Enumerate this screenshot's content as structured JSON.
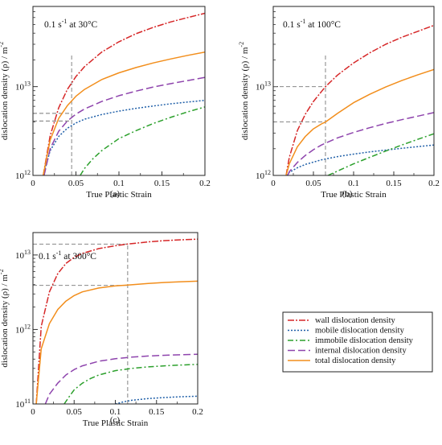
{
  "legend": {
    "items": [
      {
        "label": "wall dislocation density",
        "color": "#d62728",
        "dash": "8,2,2,2"
      },
      {
        "label": "mobile dislocation density",
        "color": "#1f5fa8",
        "dash": "2,2"
      },
      {
        "label": "immobile dislocation density",
        "color": "#2ca02c",
        "dash": "7,3,2,3"
      },
      {
        "label": "internal dislocation density",
        "color": "#8e44ad",
        "dash": "9,4"
      },
      {
        "label": "total dislocation density",
        "color": "#f28e1c",
        "dash": ""
      }
    ]
  },
  "chart_data": [
    {
      "type": "line",
      "panel_label": "(a)",
      "condition_text": "0.1 s",
      "condition_sup": "-1",
      "condition_suffix": " at 30°C",
      "xlabel": "True Plastic Strain",
      "ylabel": "dislocation density (ρ) / m",
      "ylabel_sup": "-2",
      "xlim": [
        0,
        0.2
      ],
      "ylim": [
        1000000000000.0,
        80000000000000.0
      ],
      "yscale": "log",
      "xticks": [
        "0",
        "0.05",
        "0.1",
        "0.15",
        "0.2"
      ],
      "yticks": [
        {
          "base": "10",
          "exp": "12",
          "value": 1000000000000.0
        },
        {
          "base": "10",
          "exp": "13",
          "value": 10000000000000.0
        }
      ],
      "reference_lines": {
        "x": 0.045,
        "y": [
          5000000000000.0,
          4100000000000.0
        ]
      },
      "series": [
        {
          "ref": "wall",
          "x": [
            0.012,
            0.02,
            0.03,
            0.04,
            0.05,
            0.06,
            0.08,
            0.1,
            0.12,
            0.14,
            0.16,
            0.18,
            0.2
          ],
          "y": [
            1000000000000.0,
            2800000000000.0,
            5800000000000.0,
            9300000000000.0,
            13000000000000.0,
            16800000000000.0,
            24500000000000.0,
            32000000000000.0,
            39500000000000.0,
            46500000000000.0,
            53500000000000.0,
            60000000000000.0,
            67000000000000.0
          ]
        },
        {
          "ref": "mobile",
          "x": [
            0.012,
            0.02,
            0.03,
            0.04,
            0.05,
            0.06,
            0.08,
            0.1,
            0.12,
            0.14,
            0.16,
            0.18,
            0.2
          ],
          "y": [
            1000000000000.0,
            1900000000000.0,
            2750000000000.0,
            3400000000000.0,
            3900000000000.0,
            4300000000000.0,
            4850000000000.0,
            5300000000000.0,
            5700000000000.0,
            6050000000000.0,
            6400000000000.0,
            6700000000000.0,
            7000000000000.0
          ]
        },
        {
          "ref": "immobile",
          "x": [
            0.055,
            0.06,
            0.07,
            0.08,
            0.1,
            0.12,
            0.14,
            0.16,
            0.18,
            0.2
          ],
          "y": [
            1000000000000.0,
            1200000000000.0,
            1550000000000.0,
            1900000000000.0,
            2600000000000.0,
            3200000000000.0,
            3850000000000.0,
            4500000000000.0,
            5200000000000.0,
            5900000000000.0
          ]
        },
        {
          "ref": "internal",
          "x": [
            0.013,
            0.02,
            0.03,
            0.04,
            0.05,
            0.06,
            0.08,
            0.1,
            0.12,
            0.14,
            0.16,
            0.18,
            0.2
          ],
          "y": [
            1000000000000.0,
            2000000000000.0,
            3150000000000.0,
            4100000000000.0,
            4900000000000.0,
            5600000000000.0,
            6800000000000.0,
            7900000000000.0,
            8900000000000.0,
            9900000000000.0,
            10800000000000.0,
            11700000000000.0,
            12700000000000.0
          ]
        },
        {
          "ref": "total",
          "x": [
            0.012,
            0.02,
            0.03,
            0.04,
            0.05,
            0.06,
            0.08,
            0.1,
            0.12,
            0.14,
            0.16,
            0.18,
            0.2
          ],
          "y": [
            1000000000000.0,
            2500000000000.0,
            4400000000000.0,
            6100000000000.0,
            7800000000000.0,
            9300000000000.0,
            12000000000000.0,
            14300000000000.0,
            16400000000000.0,
            18500000000000.0,
            20500000000000.0,
            22500000000000.0,
            24500000000000.0
          ]
        }
      ]
    },
    {
      "type": "line",
      "panel_label": "(b)",
      "condition_text": "0.1 s",
      "condition_sup": "-1",
      "condition_suffix": " at 100°C",
      "xlabel": "True Plastic Strain",
      "ylabel": "dislocation density (ρ) / m",
      "ylabel_sup": "-2",
      "xlim": [
        0,
        0.2
      ],
      "ylim": [
        1000000000000.0,
        80000000000000.0
      ],
      "yscale": "log",
      "xticks": [
        "0",
        "0.05",
        "0.1",
        "0.15",
        "0.2"
      ],
      "yticks": [
        {
          "base": "10",
          "exp": "12",
          "value": 1000000000000.0
        },
        {
          "base": "10",
          "exp": "13",
          "value": 10000000000000.0
        }
      ],
      "reference_lines": {
        "x": 0.065,
        "y": [
          10000000000000.0,
          4000000000000.0
        ]
      },
      "series": [
        {
          "ref": "wall",
          "x": [
            0.016,
            0.02,
            0.03,
            0.04,
            0.05,
            0.06,
            0.065,
            0.08,
            0.1,
            0.12,
            0.14,
            0.16,
            0.18,
            0.2
          ],
          "y": [
            1000000000000.0,
            1600000000000.0,
            3200000000000.0,
            4900000000000.0,
            6800000000000.0,
            8800000000000.0,
            10000000000000.0,
            13500000000000.0,
            18500000000000.0,
            24000000000000.0,
            30000000000000.0,
            36000000000000.0,
            42000000000000.0,
            49000000000000.0
          ]
        },
        {
          "ref": "mobile",
          "x": [
            0.016,
            0.02,
            0.03,
            0.04,
            0.06,
            0.08,
            0.1,
            0.12,
            0.14,
            0.16,
            0.18,
            0.2
          ],
          "y": [
            1000000000000.0,
            1080000000000.0,
            1220000000000.0,
            1330000000000.0,
            1500000000000.0,
            1630000000000.0,
            1740000000000.0,
            1840000000000.0,
            1930000000000.0,
            2020000000000.0,
            2110000000000.0,
            2200000000000.0
          ]
        },
        {
          "ref": "immobile",
          "x": [
            0.068,
            0.08,
            0.1,
            0.12,
            0.14,
            0.16,
            0.18,
            0.2
          ],
          "y": [
            1000000000000.0,
            1120000000000.0,
            1350000000000.0,
            1600000000000.0,
            1880000000000.0,
            2200000000000.0,
            2550000000000.0,
            2950000000000.0
          ]
        },
        {
          "ref": "internal",
          "x": [
            0.018,
            0.02,
            0.03,
            0.04,
            0.05,
            0.06,
            0.08,
            0.1,
            0.12,
            0.14,
            0.16,
            0.18,
            0.2
          ],
          "y": [
            1000000000000.0,
            1100000000000.0,
            1400000000000.0,
            1680000000000.0,
            1950000000000.0,
            2200000000000.0,
            2650000000000.0,
            3050000000000.0,
            3450000000000.0,
            3850000000000.0,
            4250000000000.0,
            4650000000000.0,
            5100000000000.0
          ]
        },
        {
          "ref": "total",
          "x": [
            0.016,
            0.02,
            0.03,
            0.04,
            0.05,
            0.06,
            0.065,
            0.08,
            0.1,
            0.12,
            0.14,
            0.16,
            0.18,
            0.2
          ],
          "y": [
            1000000000000.0,
            1350000000000.0,
            2100000000000.0,
            2750000000000.0,
            3350000000000.0,
            3800000000000.0,
            4000000000000.0,
            5000000000000.0,
            6600000000000.0,
            8200000000000.0,
            9900000000000.0,
            11700000000000.0,
            13600000000000.0,
            15600000000000.0
          ]
        }
      ]
    },
    {
      "type": "line",
      "panel_label": "(c)",
      "condition_text": "0.1 s",
      "condition_sup": "-1",
      "condition_suffix": " at 300°C",
      "xlabel": "True Plastic Strain",
      "ylabel": "dislocation density (ρ) / m",
      "ylabel_sup": "-2",
      "xlim": [
        0,
        0.2
      ],
      "ylim": [
        100000000000.0,
        20000000000000.0
      ],
      "yscale": "log",
      "xticks": [
        "0",
        "0.05",
        "0.1",
        "0.15",
        "0.2"
      ],
      "yticks": [
        {
          "base": "10",
          "exp": "11",
          "value": 100000000000.0
        },
        {
          "base": "10",
          "exp": "12",
          "value": 1000000000000.0
        },
        {
          "base": "10",
          "exp": "13",
          "value": 10000000000000.0
        }
      ],
      "reference_lines": {
        "x": 0.115,
        "y": [
          14000000000000.0,
          3900000000000.0
        ]
      },
      "series": [
        {
          "ref": "wall",
          "x": [
            0.004,
            0.01,
            0.02,
            0.03,
            0.04,
            0.05,
            0.06,
            0.08,
            0.1,
            0.115,
            0.14,
            0.16,
            0.18,
            0.2
          ],
          "y": [
            100000000000.0,
            1100000000000.0,
            3200000000000.0,
            5600000000000.0,
            7700000000000.0,
            9300000000000.0,
            10500000000000.0,
            12200000000000.0,
            13300000000000.0,
            14000000000000.0,
            15000000000000.0,
            15600000000000.0,
            16000000000000.0,
            16300000000000.0
          ]
        },
        {
          "ref": "mobile",
          "x": [
            0.1,
            0.11,
            0.12,
            0.14,
            0.16,
            0.18,
            0.2
          ],
          "y": [
            100000000000.0,
            107000000000.0,
            112000000000.0,
            118000000000.0,
            122000000000.0,
            125000000000.0,
            127000000000.0
          ]
        },
        {
          "ref": "immobile",
          "x": [
            0.038,
            0.045,
            0.05,
            0.06,
            0.07,
            0.08,
            0.1,
            0.115,
            0.12,
            0.14,
            0.16,
            0.18,
            0.2
          ],
          "y": [
            100000000000.0,
            130000000000.0,
            155000000000.0,
            190000000000.0,
            220000000000.0,
            245000000000.0,
            280000000000.0,
            295000000000.0,
            300000000000.0,
            315000000000.0,
            325000000000.0,
            333000000000.0,
            340000000000.0
          ]
        },
        {
          "ref": "internal",
          "x": [
            0.015,
            0.02,
            0.03,
            0.04,
            0.05,
            0.06,
            0.08,
            0.1,
            0.12,
            0.14,
            0.16,
            0.18,
            0.2
          ],
          "y": [
            100000000000.0,
            135000000000.0,
            190000000000.0,
            245000000000.0,
            290000000000.0,
            325000000000.0,
            375000000000.0,
            405000000000.0,
            425000000000.0,
            440000000000.0,
            450000000000.0,
            458000000000.0,
            465000000000.0
          ]
        },
        {
          "ref": "total",
          "x": [
            0.004,
            0.01,
            0.02,
            0.03,
            0.04,
            0.05,
            0.06,
            0.08,
            0.1,
            0.115,
            0.14,
            0.16,
            0.18,
            0.2
          ],
          "y": [
            100000000000.0,
            550000000000.0,
            1200000000000.0,
            1850000000000.0,
            2400000000000.0,
            2850000000000.0,
            3200000000000.0,
            3600000000000.0,
            3850000000000.0,
            3950000000000.0,
            4150000000000.0,
            4280000000000.0,
            4380000000000.0,
            4450000000000.0
          ]
        }
      ]
    }
  ]
}
